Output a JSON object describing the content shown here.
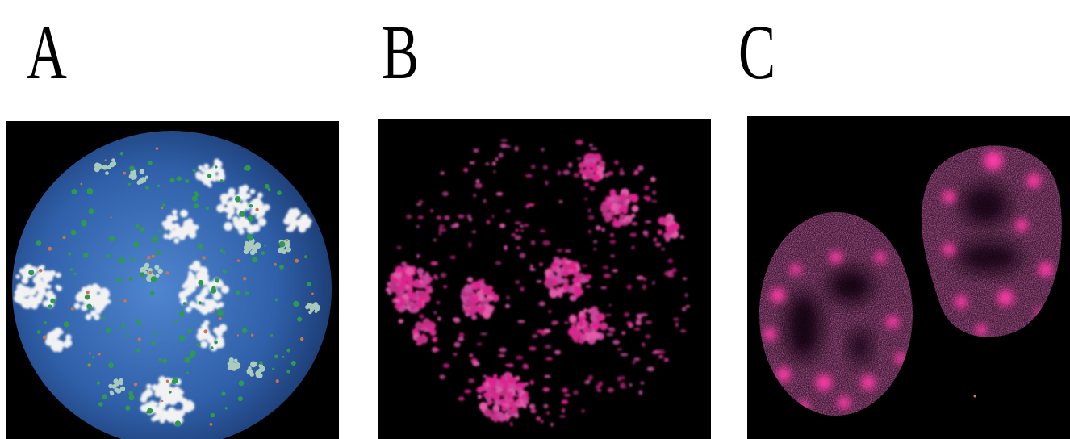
{
  "panels": [
    {
      "label": "A",
      "image": "simulated-nucleus-sphere-with-white-and-green-clusters"
    },
    {
      "label": "B",
      "image": "magenta-foci-cluster-projection"
    },
    {
      "label": "C",
      "image": "two-nuclei-magenta-fluorescence-micrograph"
    }
  ],
  "colors": {
    "background": "#000000",
    "sphere_blue": "#2f5fa8",
    "cluster_white": "#f2f2f2",
    "cluster_green": "#2e9a4e",
    "magenta": "#e0208f",
    "nucleus_pink": "#b24c8e"
  }
}
